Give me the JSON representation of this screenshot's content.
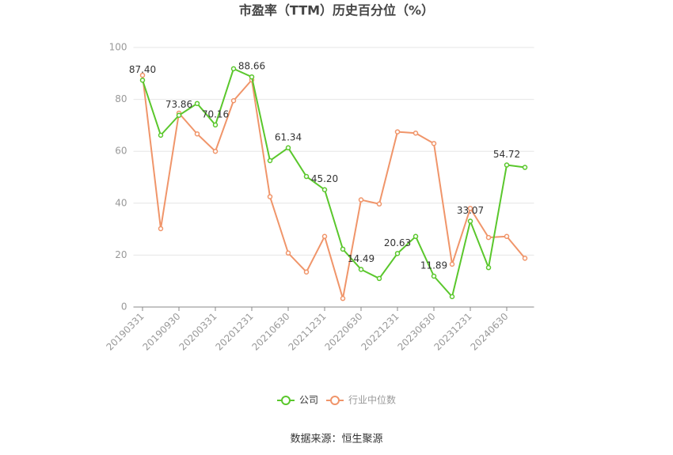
{
  "chart_data": {
    "type": "line",
    "title": "市盈率（TTM）历史百分位（%）",
    "source": "数据来源：恒生聚源",
    "categories": [
      "20190331",
      null,
      "20190930",
      null,
      "20200331",
      null,
      "20201231",
      null,
      "20210630",
      null,
      "20211231",
      null,
      "20220630",
      null,
      "20221231",
      null,
      "20230630",
      null,
      "20231231",
      null,
      "20240630",
      null
    ],
    "series": [
      {
        "name": "公司",
        "color": "#5ac72c",
        "values": [
          87.4,
          66.2,
          73.86,
          78.4,
          70.16,
          91.8,
          88.66,
          56.4,
          61.34,
          50.3,
          45.2,
          22.3,
          14.49,
          11.0,
          20.63,
          27.2,
          11.89,
          4.0,
          33.07,
          15.2,
          54.72,
          53.8
        ],
        "value_labels": [
          "87.40",
          null,
          "73.86",
          null,
          "70.16",
          null,
          "88.66",
          null,
          "61.34",
          null,
          "45.20",
          null,
          "14.49",
          null,
          "20.63",
          null,
          "11.89",
          null,
          "33.07",
          null,
          "54.72",
          null
        ]
      },
      {
        "name": "行业中位数",
        "color": "#f0956a",
        "values": [
          89.3,
          30.2,
          74.7,
          66.7,
          60.0,
          79.5,
          87.5,
          42.5,
          20.8,
          13.5,
          27.2,
          3.3,
          41.3,
          39.7,
          67.5,
          67.0,
          63.0,
          16.5,
          38.0,
          26.8,
          27.2,
          18.8
        ]
      }
    ],
    "ylim": [
      0,
      100
    ],
    "yticks": [
      0,
      20,
      40,
      60,
      80,
      100
    ],
    "grid": true
  }
}
